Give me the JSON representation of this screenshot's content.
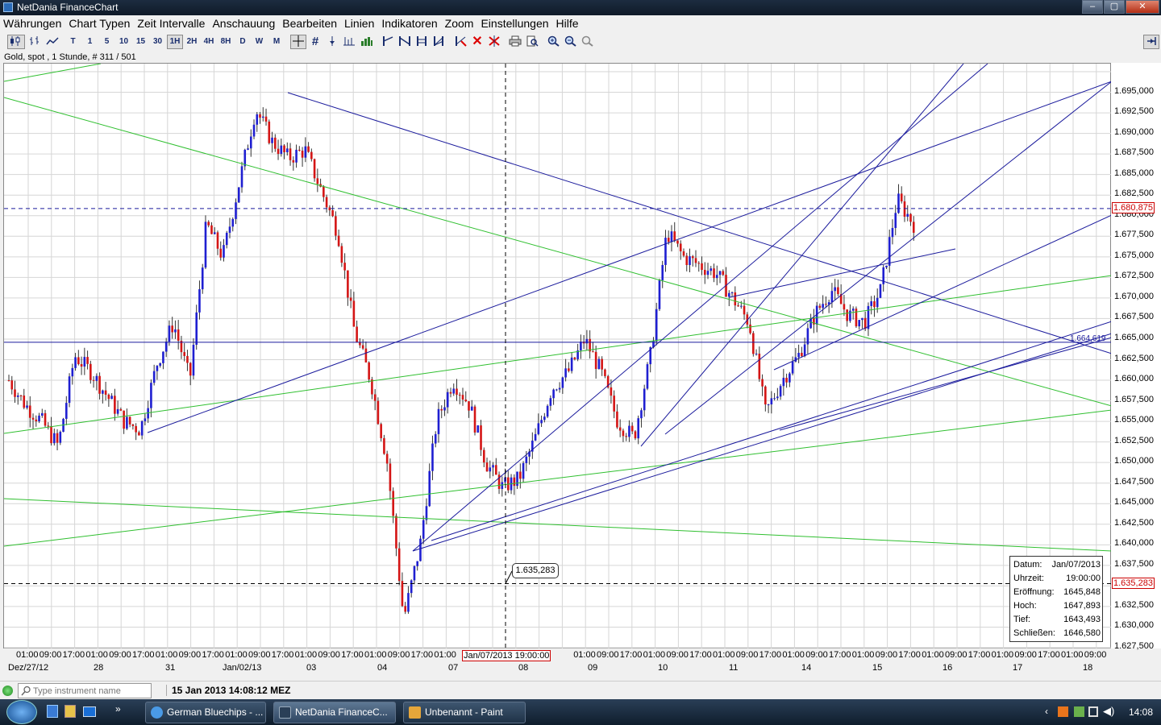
{
  "window": {
    "title": "NetDania FinanceChart"
  },
  "window_controls": {
    "minimize": "‒",
    "maximize": "▢",
    "close": "✕"
  },
  "menu": [
    "Währungen",
    "Chart Typen",
    "Zeit Intervalle",
    "Anschauung",
    "Bearbeiten",
    "Linien",
    "Indikatoren",
    "Zoom",
    "Einstellungen",
    "Hilfe"
  ],
  "toolbar": {
    "intervals": [
      "T",
      "1",
      "5",
      "10",
      "15",
      "30",
      "1H",
      "2H",
      "4H",
      "8H",
      "D",
      "W",
      "M"
    ],
    "selected_interval": "1H"
  },
  "chart_info": "Gold, spot , 1 Stunde, # 311 / 501",
  "y_axis": {
    "ticks": [
      "1.695,000",
      "1.692,500",
      "1.690,000",
      "1.687,500",
      "1.685,000",
      "1.682,500",
      "1.680,000",
      "1.677,500",
      "1.675,000",
      "1.672,500",
      "1.670,000",
      "1.667,500",
      "1.665,000",
      "1.662,500",
      "1.660,000",
      "1.657,500",
      "1.655,000",
      "1.652,500",
      "1.650,000",
      "1.647,500",
      "1.645,000",
      "1.642,500",
      "1.640,000",
      "1.637,500",
      "1.635,000",
      "1.632,500",
      "1.630,000",
      "1.627,500"
    ],
    "current_price": "1.680,875",
    "cursor_price": "1.635,283",
    "line_label": "1.664,619"
  },
  "x_axis": {
    "times": [
      "01:00",
      "09:00",
      "17:00",
      "01:00",
      "09:00",
      "17:00",
      "01:00",
      "09:00",
      "17:00",
      "01:00",
      "09:00",
      "17:00",
      "01:00",
      "09:00",
      "17:00",
      "01:00",
      "09:00",
      "17:00",
      "01:00",
      "09:00",
      "17:00",
      "01:00",
      "09:00",
      "17:00",
      "01:00",
      "09:00",
      "17:00",
      "01:00",
      "09:00",
      "17:00",
      "01:00",
      "09:00",
      "17:00",
      "01:00",
      "09:00",
      "17:00",
      "01:00",
      "09:00",
      "17:00",
      "01:00",
      "09:00",
      "17:00",
      "01:00",
      "09:00",
      "17:00",
      "01:00",
      "09:00",
      "17:00",
      "01:00",
      "09:00",
      "17:00",
      "01:00",
      "09:00",
      "17:00",
      "01:00",
      "09:00",
      "17:00",
      "01:00",
      "09:00",
      "17:00",
      "01:00",
      "09:00",
      "17:00",
      "01:00",
      "09:00",
      "17:00",
      "01:00",
      "09:00",
      "17:00",
      "01:00",
      "09:00",
      "17:00",
      "01:00",
      "09:00",
      "17:00",
      "01:00",
      "09:00",
      "17:00",
      "01:00",
      "09:00",
      "17:00",
      "01:00",
      "09:00",
      "17:00",
      "01:00",
      "09:00",
      "17:00",
      "01:00",
      "09:00",
      "17:00",
      "01:00",
      "09:00",
      "17:00",
      "01:00",
      "09:00",
      "17:00",
      "01:00",
      "09:00",
      "17:00",
      "01:00",
      "09:00",
      "17:00",
      "01:00",
      "09:00",
      "17:00",
      "01:00",
      "09:00",
      "17:00",
      "01:00",
      "09:00",
      "17:00",
      "01:00",
      "09:00",
      "17:00",
      "01:00",
      "09:00",
      "17:00",
      "01:00",
      "09:00",
      "17:00",
      "01:00",
      "09:00",
      "17:00",
      "01:00",
      "09:00",
      "17:00",
      "01:00",
      "09:00",
      "17:00",
      "01:00",
      "09:00",
      "17:00",
      "01:00",
      "09:00",
      "17:00",
      "01:00",
      "09:00",
      "17:00",
      "01:00",
      "09:00",
      "17:00",
      "01:00",
      "09:00",
      "17:00",
      "01:00",
      "09:00",
      "17:00",
      "01:00",
      "09:00",
      "17:00",
      "01:00",
      "09:00",
      "17:00",
      "01:00",
      "09:00",
      "17:00",
      "01:00",
      "09:00",
      "17:00"
    ],
    "dates": [
      "Dez/27/12",
      "28",
      "31",
      "Jan/02/13",
      "03",
      "04",
      "07",
      "08",
      "09",
      "10",
      "11",
      "14",
      "15",
      "16",
      "17",
      "18"
    ],
    "cursor_time": "Jan/07/2013 19:00:00"
  },
  "data_box": {
    "rows": [
      {
        "label": "Datum:",
        "value": "Jan/07/2013"
      },
      {
        "label": "Uhrzeit:",
        "value": "19:00:00"
      },
      {
        "label": "Eröffnung:",
        "value": "1645,848"
      },
      {
        "label": "Hoch:",
        "value": "1647,893"
      },
      {
        "label": "Tief:",
        "value": "1643,493"
      },
      {
        "label": "Schließen:",
        "value": "1646,580"
      }
    ]
  },
  "price_bubble": "1.635,283",
  "status": {
    "search_placeholder": "Type instrument name",
    "datetime": "15 Jan 2013 14:08:12 MEZ"
  },
  "taskbar": {
    "items": [
      {
        "label": "German Bluechips - ...",
        "icon": "ie-icon"
      },
      {
        "label": "NetDania FinanceC...",
        "icon": "netdania-icon"
      },
      {
        "label": "Unbenannt - Paint",
        "icon": "paint-icon"
      }
    ],
    "clock": "14:08"
  },
  "colors": {
    "up_candle": "#1f1fd1",
    "down_candle": "#d41515",
    "blue_line": "#1a1a9c",
    "green_line": "#2fbf2f",
    "grid": "#d6d6d6"
  },
  "chart_data": {
    "type": "candlestick",
    "instrument": "Gold, spot",
    "interval": "1 Stunde",
    "ylim": [
      1627.5,
      1697.5
    ],
    "x_dates": [
      "Dez/27/12",
      "28",
      "31",
      "Jan/02/13",
      "03",
      "04",
      "07",
      "08",
      "09",
      "10",
      "11",
      "14",
      "15"
    ],
    "price_path": [
      1660,
      1657,
      1655,
      1652,
      1663,
      1661,
      1658,
      1655,
      1654,
      1662,
      1667,
      1660,
      1679,
      1675,
      1684,
      1693,
      1689,
      1687,
      1688,
      1683,
      1678,
      1666,
      1660,
      1650,
      1631,
      1640,
      1655,
      1660,
      1657,
      1650,
      1647,
      1648,
      1653,
      1659,
      1661,
      1665,
      1661,
      1655,
      1653,
      1663,
      1678,
      1675,
      1674,
      1673,
      1670,
      1667,
      1656,
      1660,
      1663,
      1668,
      1671,
      1668,
      1667,
      1671,
      1682,
      1679
    ],
    "highlight_candle": {
      "date": "Jan/07/2013",
      "time": "19:00:00",
      "open": 1645.848,
      "high": 1647.893,
      "low": 1643.493,
      "close": 1646.58
    },
    "current_price": 1680.875,
    "cursor_price": 1635.283,
    "line_label_value": 1664.619
  }
}
